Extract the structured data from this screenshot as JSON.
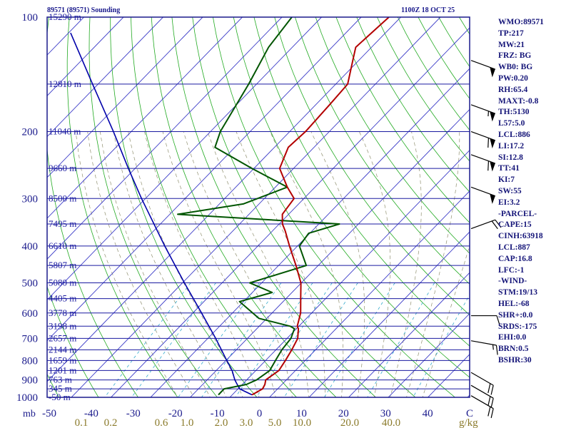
{
  "header": {
    "station": "89571 (89571) Sounding",
    "time": "1100Z 18 OCT 25"
  },
  "indices": [
    "WMO:89571",
    "TP:217",
    "MW:21",
    "FRZ: BG",
    "WB0: BG",
    "PW:0.20",
    "RH:65.4",
    "MAXT:-0.8",
    "TH:5130",
    "L57:5.0",
    "LCL:886",
    "LI:17.2",
    "SI:12.8",
    "TT:41",
    "KI:7",
    "SW:55",
    "EI:3.2",
    "-PARCEL-",
    "CAPE:15",
    "CINH:63918",
    "LCL:887",
    "CAP:16.8",
    "LFC:-1",
    "-WIND-",
    "STM:19/13",
    "HEL:-68",
    "SHR+:0.0",
    "SRDS:-175",
    "EHI:0.0",
    "BRN:0.5",
    "BSHR:30"
  ],
  "colors": {
    "border": "#1a1a8c",
    "isobar": "#1a1aa0",
    "isotherm": "#3c3cc8",
    "dry_adiabat": "#22aa22",
    "moist_adiabat": "#909070",
    "mixing_ratio": "#33aacc",
    "temperature": "#b30000",
    "dewpoint": "#005500",
    "parcel": "#0000aa",
    "wind": "#000000",
    "tick": "#1a1a8c",
    "mixing_label": "#8a7a2a"
  },
  "chart_data": {
    "type": "skew-t",
    "pressure_axis_unit": "mb",
    "pressure_ticks": [
      100,
      200,
      300,
      400,
      500,
      600,
      700,
      800,
      900,
      1000
    ],
    "temperature_ticks": [
      -50,
      -40,
      -30,
      -20,
      -10,
      0,
      10,
      20,
      30,
      40,
      "C"
    ],
    "mixing_ratio_unit": "g/kg",
    "mixing_ratio_ticks": [
      "0.1",
      "0.2",
      "0.6",
      "1.0",
      "2.0",
      "3.0",
      "5.0",
      "10.0",
      "20.0",
      "40.0"
    ],
    "height_levels": [
      {
        "p": 100,
        "label": "15290 m"
      },
      {
        "p": 150,
        "label": "12810 m"
      },
      {
        "p": 200,
        "label": "11040 m"
      },
      {
        "p": 250,
        "label": "9660 m"
      },
      {
        "p": 300,
        "label": "8500 m"
      },
      {
        "p": 350,
        "label": "7495 m"
      },
      {
        "p": 400,
        "label": "6610 m"
      },
      {
        "p": 450,
        "label": "5807 m"
      },
      {
        "p": 500,
        "label": "5080 m"
      },
      {
        "p": 550,
        "label": "4405 m"
      },
      {
        "p": 600,
        "label": "3778 m"
      },
      {
        "p": 650,
        "label": "3198 m"
      },
      {
        "p": 700,
        "label": "2657 m"
      },
      {
        "p": 750,
        "label": "2144 m"
      },
      {
        "p": 800,
        "label": "1659 m"
      },
      {
        "p": 850,
        "label": "1201 m"
      },
      {
        "p": 900,
        "label": "763 m"
      },
      {
        "p": 950,
        "label": "345 m"
      },
      {
        "p": 1000,
        "label": "-50 m"
      }
    ],
    "temperature_profile": [
      {
        "p": 985,
        "t": -5.0
      },
      {
        "p": 950,
        "t": -3.8
      },
      {
        "p": 925,
        "t": -4.3
      },
      {
        "p": 900,
        "t": -5.2
      },
      {
        "p": 850,
        "t": -4.2
      },
      {
        "p": 800,
        "t": -5.0
      },
      {
        "p": 750,
        "t": -6.0
      },
      {
        "p": 700,
        "t": -7.3
      },
      {
        "p": 660,
        "t": -9.5
      },
      {
        "p": 650,
        "t": -10.4
      },
      {
        "p": 600,
        "t": -12.8
      },
      {
        "p": 550,
        "t": -16.3
      },
      {
        "p": 500,
        "t": -20.1
      },
      {
        "p": 450,
        "t": -25.6
      },
      {
        "p": 400,
        "t": -32.0
      },
      {
        "p": 365,
        "t": -36.8
      },
      {
        "p": 350,
        "t": -39.2
      },
      {
        "p": 330,
        "t": -41.6
      },
      {
        "p": 300,
        "t": -42.5
      },
      {
        "p": 280,
        "t": -47.0
      },
      {
        "p": 250,
        "t": -53.5
      },
      {
        "p": 220,
        "t": -56.5
      },
      {
        "p": 200,
        "t": -56.0
      },
      {
        "p": 170,
        "t": -56.5
      },
      {
        "p": 150,
        "t": -57.0
      },
      {
        "p": 130,
        "t": -61.5
      },
      {
        "p": 120,
        "t": -64.0
      },
      {
        "p": 100,
        "t": -63.0
      }
    ],
    "dewpoint_profile": [
      {
        "p": 985,
        "t": -13.5
      },
      {
        "p": 950,
        "t": -13.5
      },
      {
        "p": 925,
        "t": -9.0
      },
      {
        "p": 900,
        "t": -7.5
      },
      {
        "p": 850,
        "t": -6.5
      },
      {
        "p": 800,
        "t": -7.5
      },
      {
        "p": 750,
        "t": -8.5
      },
      {
        "p": 700,
        "t": -9.0
      },
      {
        "p": 660,
        "t": -10.5
      },
      {
        "p": 650,
        "t": -12.2
      },
      {
        "p": 620,
        "t": -22.0
      },
      {
        "p": 560,
        "t": -31.0
      },
      {
        "p": 530,
        "t": -25.0
      },
      {
        "p": 500,
        "t": -33.0
      },
      {
        "p": 450,
        "t": -23.0
      },
      {
        "p": 400,
        "t": -29.5
      },
      {
        "p": 370,
        "t": -30.3
      },
      {
        "p": 350,
        "t": -24.8
      },
      {
        "p": 330,
        "t": -68.0
      },
      {
        "p": 310,
        "t": -54.0
      },
      {
        "p": 280,
        "t": -47.0
      },
      {
        "p": 250,
        "t": -60.5
      },
      {
        "p": 220,
        "t": -75.0
      },
      {
        "p": 200,
        "t": -77.5
      },
      {
        "p": 150,
        "t": -82.0
      },
      {
        "p": 120,
        "t": -86.0
      },
      {
        "p": 100,
        "t": -87.5
      }
    ],
    "parcel_profile": [
      {
        "p": 985,
        "t": -5.0
      },
      {
        "p": 950,
        "t": -9.6
      },
      {
        "p": 900,
        "t": -13.0
      },
      {
        "p": 850,
        "t": -16.0
      },
      {
        "p": 800,
        "t": -19.8
      },
      {
        "p": 700,
        "t": -28.0
      },
      {
        "p": 600,
        "t": -37.8
      },
      {
        "p": 500,
        "t": -49.5
      },
      {
        "p": 400,
        "t": -63.5
      },
      {
        "p": 300,
        "t": -81.0
      },
      {
        "p": 250,
        "t": -91.7
      },
      {
        "p": 200,
        "t": -104.5
      },
      {
        "p": 150,
        "t": -121.4
      },
      {
        "p": 110,
        "t": -139.5
      }
    ],
    "wind_barbs": [
      {
        "p": 990,
        "dir": 300,
        "spd": 20
      },
      {
        "p": 930,
        "dir": 300,
        "spd": 20
      },
      {
        "p": 860,
        "dir": 300,
        "spd": 20
      },
      {
        "p": 710,
        "dir": 280,
        "spd": 15
      },
      {
        "p": 610,
        "dir": 270,
        "spd": 10
      },
      {
        "p": 360,
        "dir": 250,
        "spd": 20
      },
      {
        "p": 280,
        "dir": 290,
        "spd": 50
      },
      {
        "p": 230,
        "dir": 290,
        "spd": 60
      },
      {
        "p": 200,
        "dir": 290,
        "spd": 60
      },
      {
        "p": 170,
        "dir": 290,
        "spd": 55
      },
      {
        "p": 130,
        "dir": 290,
        "spd": 50
      }
    ]
  }
}
